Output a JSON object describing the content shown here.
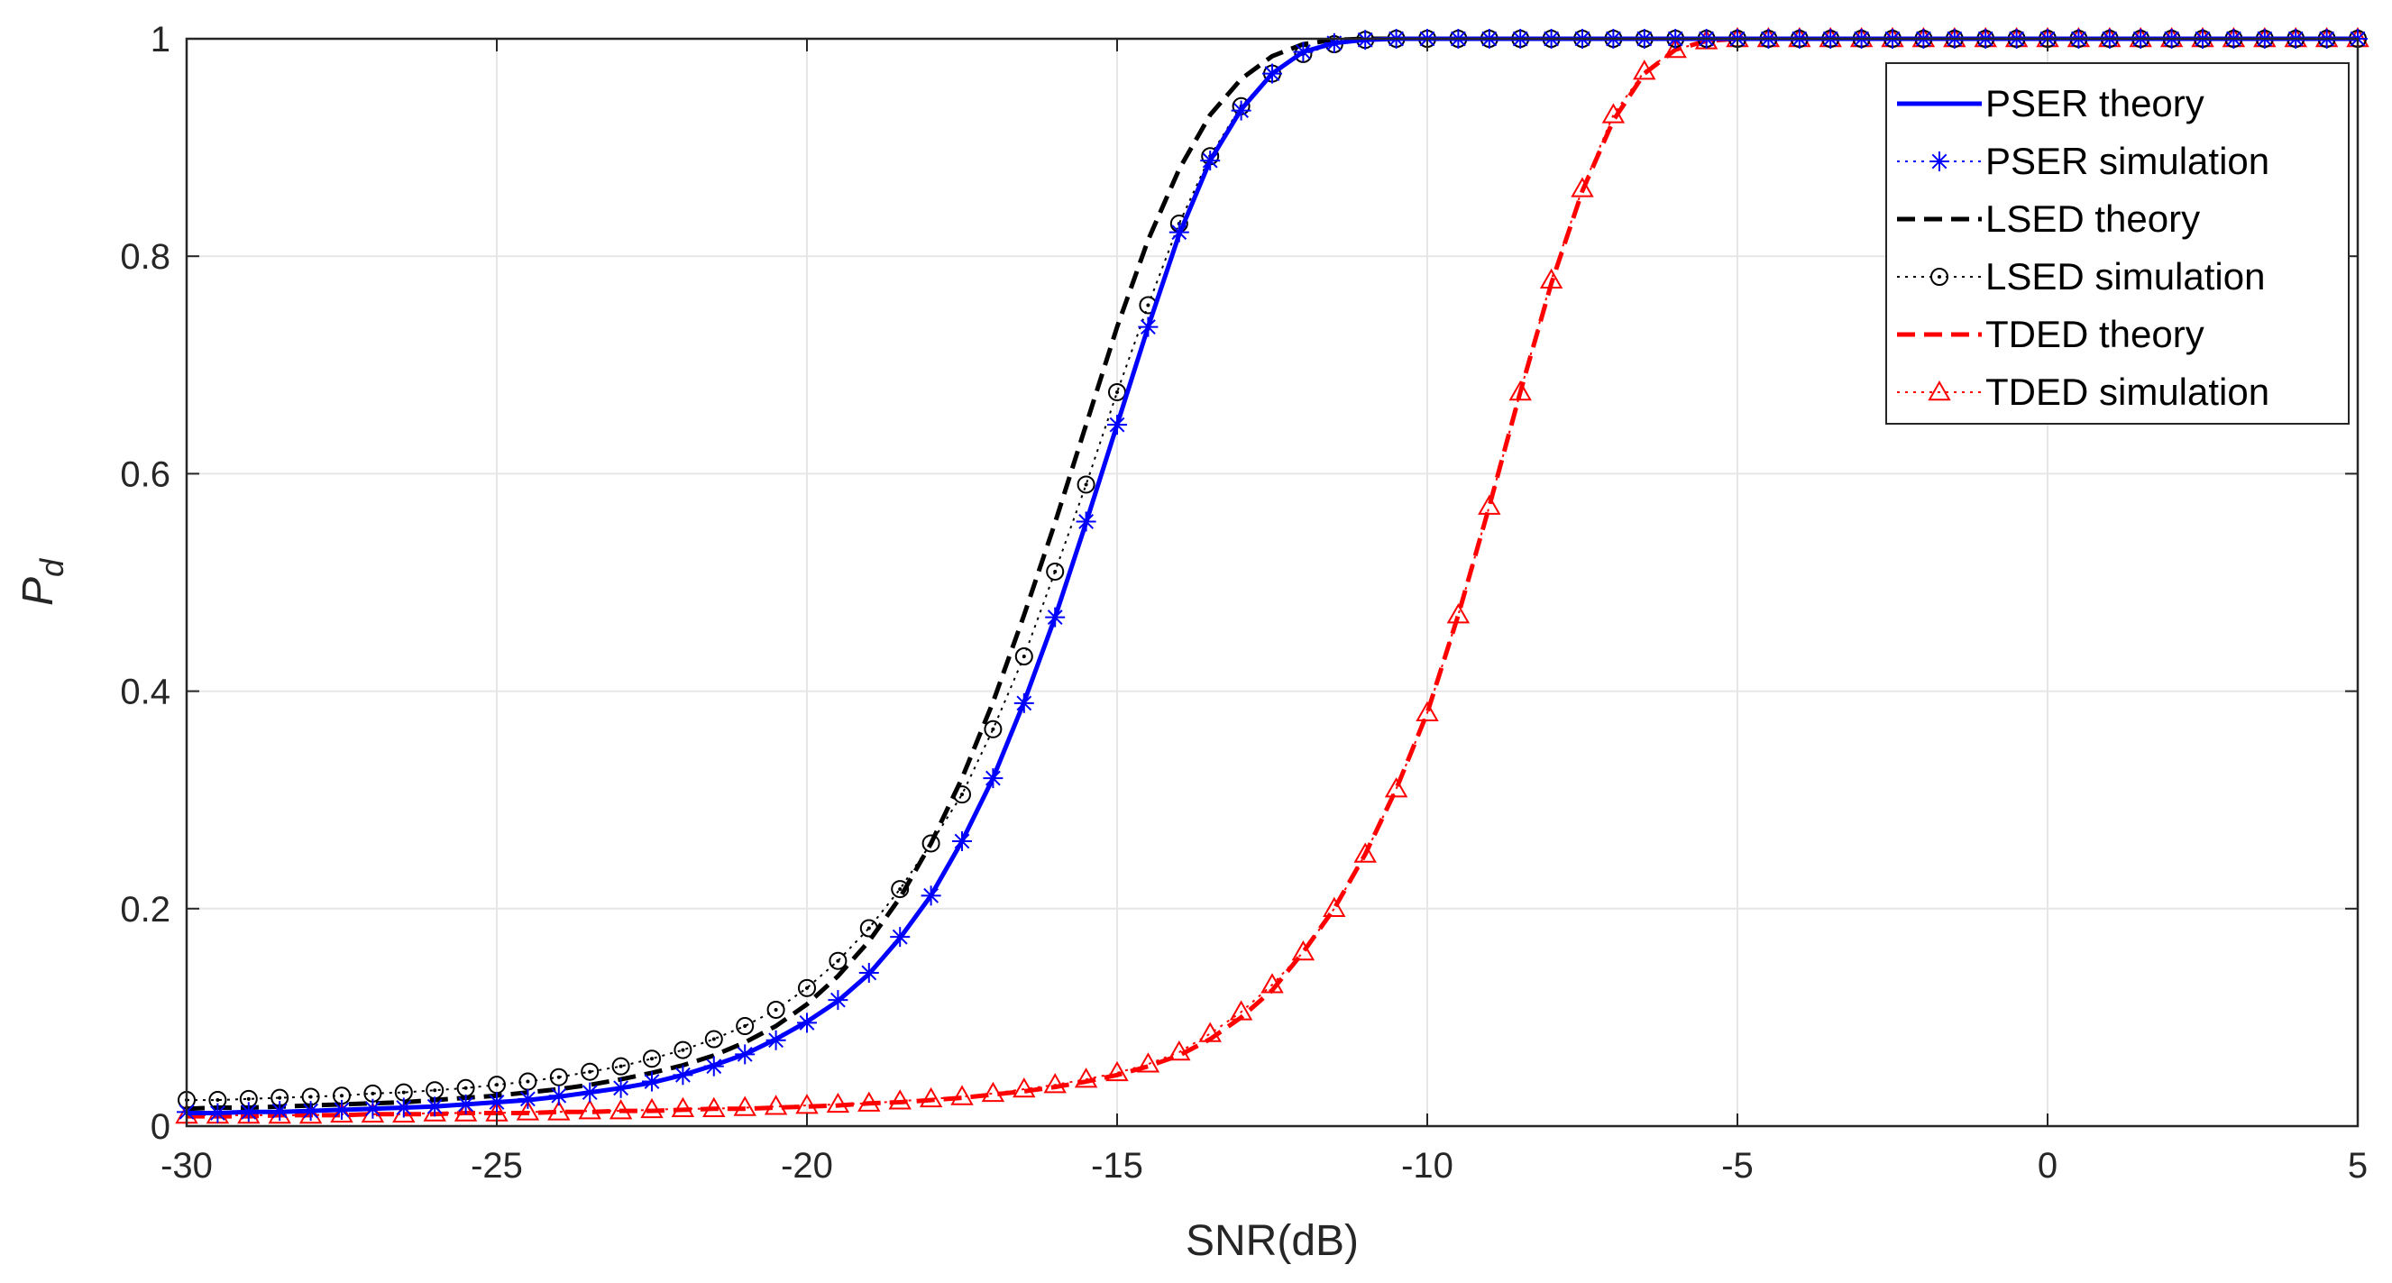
{
  "chart_data": {
    "type": "line",
    "title": "",
    "xlabel": "SNR(dB)",
    "ylabel_main": "P",
    "ylabel_sub": "d",
    "xlim": [
      -30,
      5
    ],
    "ylim": [
      0,
      1
    ],
    "grid": true,
    "legend_position": "top-right",
    "xticks": [
      -30,
      -25,
      -20,
      -15,
      -10,
      -5,
      0,
      5
    ],
    "yticks": [
      0,
      0.2,
      0.4,
      0.6,
      0.8,
      1
    ],
    "xtick_labels": [
      "-30",
      "-25",
      "-20",
      "-15",
      "-10",
      "-5",
      "0",
      "5"
    ],
    "ytick_labels": [
      "0",
      "0.2",
      "0.4",
      "0.6",
      "0.8",
      "1"
    ],
    "x": [
      -30,
      -29.5,
      -29,
      -28.5,
      -28,
      -27.5,
      -27,
      -26.5,
      -26,
      -25.5,
      -25,
      -24.5,
      -24,
      -23.5,
      -23,
      -22.5,
      -22,
      -21.5,
      -21,
      -20.5,
      -20,
      -19.5,
      -19,
      -18.5,
      -18,
      -17.5,
      -17,
      -16.5,
      -16,
      -15.5,
      -15,
      -14.5,
      -14,
      -13.5,
      -13,
      -12.5,
      -12,
      -11.5,
      -11,
      -10.5,
      -10,
      -9.5,
      -9,
      -8.5,
      -8,
      -7.5,
      -7,
      -6.5,
      -6,
      -5.5,
      -5,
      -4.5,
      -4,
      -3.5,
      -3,
      -2.5,
      -2,
      -1.5,
      -1,
      -0.5,
      0,
      0.5,
      1,
      1.5,
      2,
      2.5,
      3,
      3.5,
      4,
      4.5,
      5
    ],
    "series": [
      {
        "name": "PSER theory",
        "color": "#0000ff",
        "style": "solid",
        "marker": "none",
        "values": [
          0.012,
          0.012,
          0.013,
          0.013,
          0.014,
          0.015,
          0.016,
          0.017,
          0.018,
          0.02,
          0.022,
          0.024,
          0.027,
          0.031,
          0.035,
          0.04,
          0.047,
          0.056,
          0.066,
          0.08,
          0.096,
          0.115,
          0.14,
          0.173,
          0.212,
          0.262,
          0.32,
          0.39,
          0.468,
          0.555,
          0.645,
          0.735,
          0.82,
          0.888,
          0.935,
          0.968,
          0.988,
          0.996,
          0.999,
          1,
          1,
          1,
          1,
          1,
          1,
          1,
          1,
          1,
          1,
          1,
          1,
          1,
          1,
          1,
          1,
          1,
          1,
          1,
          1,
          1,
          1,
          1,
          1,
          1,
          1,
          1,
          1,
          1,
          1,
          1,
          1
        ]
      },
      {
        "name": "PSER simulation",
        "color": "#0000ff",
        "style": "dotted",
        "marker": "star",
        "values": [
          0.013,
          0.012,
          0.013,
          0.014,
          0.014,
          0.015,
          0.016,
          0.017,
          0.018,
          0.02,
          0.022,
          0.025,
          0.028,
          0.031,
          0.035,
          0.041,
          0.047,
          0.055,
          0.066,
          0.079,
          0.095,
          0.116,
          0.141,
          0.174,
          0.212,
          0.262,
          0.32,
          0.389,
          0.468,
          0.556,
          0.645,
          0.735,
          0.822,
          0.888,
          0.934,
          0.968,
          0.988,
          0.996,
          0.999,
          1,
          1,
          1,
          1,
          1,
          1,
          1,
          1,
          1,
          1,
          1,
          1,
          1,
          1,
          1,
          1,
          1,
          1,
          1,
          1,
          1,
          1,
          1,
          1,
          1,
          1,
          1,
          1,
          1,
          1,
          1,
          1
        ]
      },
      {
        "name": "LSED theory",
        "color": "#000000",
        "style": "dashed",
        "marker": "none",
        "values": [
          0.016,
          0.017,
          0.017,
          0.018,
          0.019,
          0.02,
          0.021,
          0.022,
          0.024,
          0.026,
          0.028,
          0.031,
          0.034,
          0.038,
          0.043,
          0.049,
          0.056,
          0.065,
          0.077,
          0.092,
          0.112,
          0.138,
          0.17,
          0.21,
          0.26,
          0.32,
          0.39,
          0.47,
          0.555,
          0.645,
          0.735,
          0.815,
          0.88,
          0.93,
          0.963,
          0.984,
          0.995,
          0.999,
          1,
          1,
          1,
          1,
          1,
          1,
          1,
          1,
          1,
          1,
          1,
          1,
          1,
          1,
          1,
          1,
          1,
          1,
          1,
          1,
          1,
          1,
          1,
          1,
          1,
          1,
          1,
          1,
          1,
          1,
          1,
          1,
          1
        ]
      },
      {
        "name": "LSED simulation",
        "color": "#000000",
        "style": "dotted",
        "marker": "circle",
        "values": [
          0.024,
          0.024,
          0.025,
          0.026,
          0.027,
          0.028,
          0.03,
          0.031,
          0.033,
          0.035,
          0.038,
          0.041,
          0.045,
          0.05,
          0.055,
          0.062,
          0.07,
          0.08,
          0.092,
          0.107,
          0.127,
          0.152,
          0.182,
          0.218,
          0.26,
          0.305,
          0.365,
          0.432,
          0.51,
          0.59,
          0.675,
          0.755,
          0.83,
          0.892,
          0.938,
          0.968,
          0.986,
          0.995,
          0.999,
          1,
          1,
          1,
          1,
          1,
          1,
          1,
          1,
          1,
          1,
          1,
          1,
          1,
          1,
          1,
          1,
          1,
          1,
          1,
          1,
          1,
          1,
          1,
          1,
          1,
          1,
          1,
          1,
          1,
          1,
          1,
          1
        ]
      },
      {
        "name": "TDED theory",
        "color": "#ff0000",
        "style": "dashed",
        "marker": "none",
        "values": [
          0.009,
          0.009,
          0.009,
          0.01,
          0.01,
          0.01,
          0.011,
          0.011,
          0.011,
          0.012,
          0.012,
          0.012,
          0.013,
          0.013,
          0.014,
          0.014,
          0.015,
          0.016,
          0.016,
          0.017,
          0.018,
          0.019,
          0.021,
          0.022,
          0.024,
          0.026,
          0.029,
          0.032,
          0.036,
          0.041,
          0.047,
          0.055,
          0.065,
          0.08,
          0.1,
          0.125,
          0.16,
          0.2,
          0.25,
          0.31,
          0.38,
          0.47,
          0.57,
          0.675,
          0.775,
          0.86,
          0.925,
          0.968,
          0.99,
          0.998,
          1,
          1,
          1,
          1,
          1,
          1,
          1,
          1,
          1,
          1,
          1,
          1,
          1,
          1,
          1,
          1,
          1,
          1,
          1,
          1,
          1
        ]
      },
      {
        "name": "TDED simulation",
        "color": "#ff0000",
        "style": "dotted",
        "marker": "triangle",
        "values": [
          0.01,
          0.01,
          0.01,
          0.01,
          0.01,
          0.011,
          0.011,
          0.011,
          0.012,
          0.012,
          0.012,
          0.013,
          0.013,
          0.014,
          0.014,
          0.015,
          0.016,
          0.016,
          0.017,
          0.018,
          0.019,
          0.02,
          0.021,
          0.023,
          0.025,
          0.027,
          0.03,
          0.034,
          0.038,
          0.043,
          0.049,
          0.057,
          0.068,
          0.085,
          0.105,
          0.13,
          0.16,
          0.2,
          0.25,
          0.31,
          0.38,
          0.47,
          0.57,
          0.675,
          0.778,
          0.862,
          0.93,
          0.97,
          0.99,
          0.998,
          1,
          1,
          1,
          1,
          1,
          1,
          1,
          1,
          1,
          1,
          1,
          1,
          1,
          1,
          1,
          1,
          1,
          1,
          1,
          1,
          1
        ]
      }
    ]
  }
}
